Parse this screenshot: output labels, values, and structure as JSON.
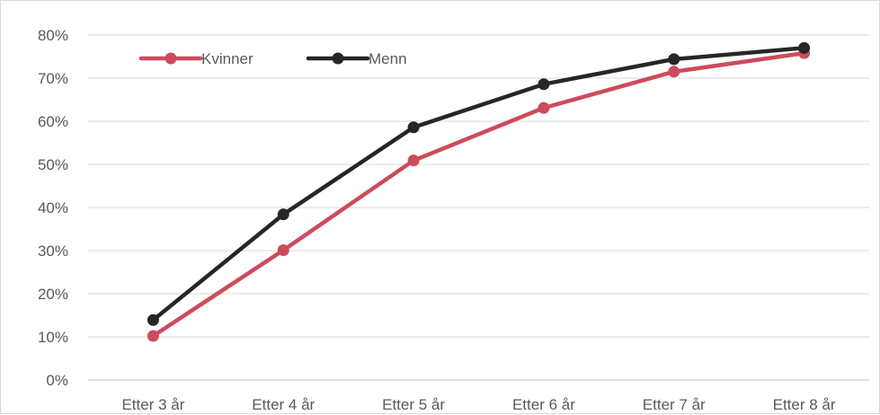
{
  "chart_data": {
    "type": "line",
    "categories": [
      "Etter 3 år",
      "Etter 4 år",
      "Etter 5 år",
      "Etter 6 år",
      "Etter 7 år",
      "Etter 8 år"
    ],
    "series": [
      {
        "name": "Kvinner",
        "color": "#cc4b5c",
        "values": [
          10.2,
          30.1,
          50.9,
          63.1,
          71.5,
          75.8
        ]
      },
      {
        "name": "Menn",
        "color": "#262626",
        "values": [
          13.9,
          38.4,
          58.6,
          68.6,
          74.4,
          77.0
        ]
      }
    ],
    "y_ticks": [
      "0%",
      "10%",
      "20%",
      "30%",
      "40%",
      "50%",
      "60%",
      "70%",
      "80%"
    ],
    "ylim": [
      0,
      80
    ],
    "y_unit": "%",
    "grid": true,
    "legend_position": "top-left",
    "title": "",
    "xlabel": "",
    "ylabel": ""
  }
}
